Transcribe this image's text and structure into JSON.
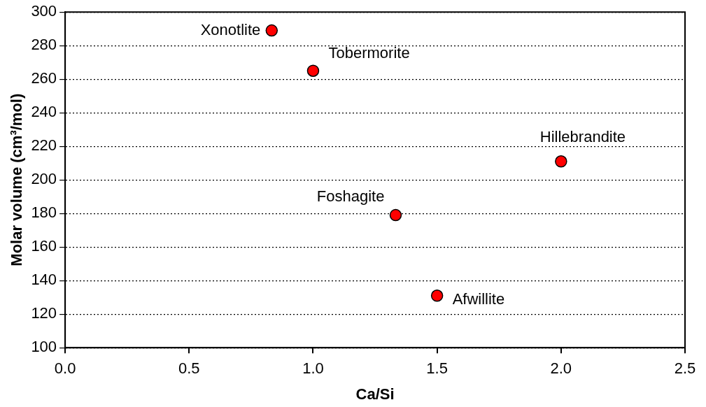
{
  "chart_data": {
    "type": "scatter",
    "xlabel": "Ca/Si",
    "ylabel": "Molar volume (cm³/mol)",
    "x": [
      0.833,
      1.0,
      2.0,
      1.333,
      1.5
    ],
    "series": [
      {
        "color": "#ff0000",
        "values": [
          289,
          265,
          211,
          179,
          131
        ]
      }
    ],
    "xlim": [
      0,
      2.5
    ],
    "xticks": [
      {
        "value": 0,
        "label": "0.0"
      },
      {
        "value": 0.5,
        "label": "0.5"
      },
      {
        "value": 1,
        "label": "1.0"
      },
      {
        "value": 1.5,
        "label": "1.5"
      },
      {
        "value": 2,
        "label": "2.0"
      },
      {
        "value": 2.5,
        "label": "2.5"
      }
    ],
    "ylim": [
      100,
      300
    ],
    "yticks": [
      100,
      120,
      140,
      160,
      180,
      200,
      220,
      240,
      260,
      280,
      300
    ],
    "grid": "y",
    "marker": "circle",
    "legend": false,
    "annotations": [
      {
        "text": "Xonotlite",
        "x": 0.833,
        "y": 289
      },
      {
        "text": "Tobermorite",
        "x": 1.0,
        "y": 265
      },
      {
        "text": "Hillebrandite",
        "x": 2.0,
        "y": 211
      },
      {
        "text": "Foshagite",
        "x": 1.333,
        "y": 179
      },
      {
        "text": "Afwillite",
        "x": 1.5,
        "y": 131
      }
    ]
  }
}
